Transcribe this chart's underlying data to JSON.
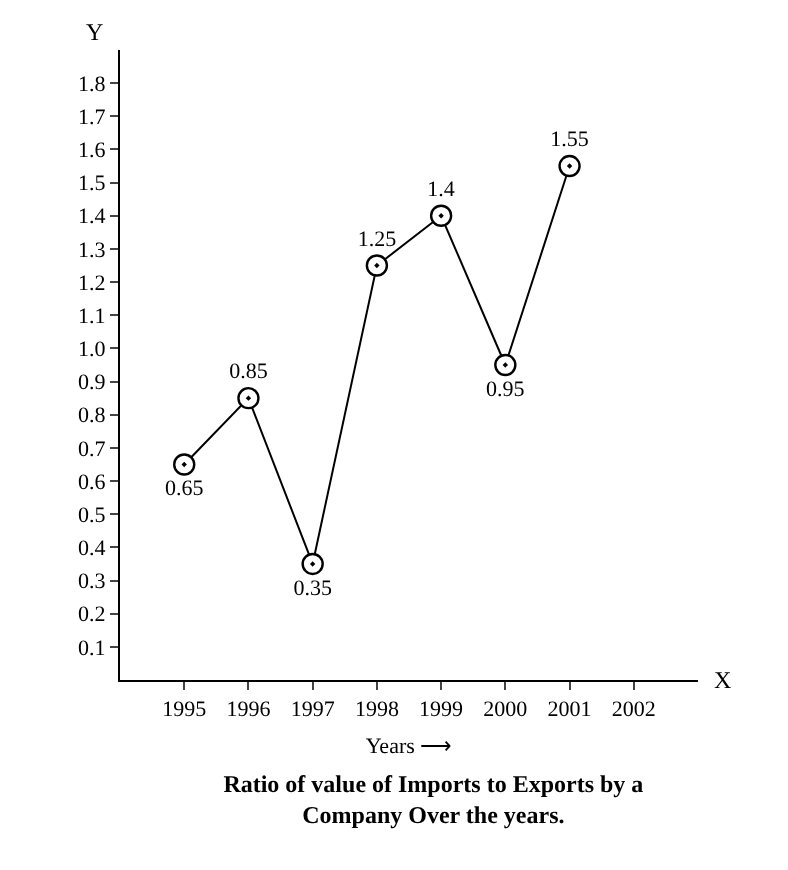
{
  "chart_data": {
    "type": "line",
    "title": "Ratio of value of Imports to Exports by a Company Over the years.",
    "xlabel": "Years ⟶",
    "ylabel": "Y",
    "annotations": [
      "X"
    ],
    "categories": [
      "1995",
      "1996",
      "1997",
      "1998",
      "1999",
      "2000",
      "2001",
      "2002"
    ],
    "series": [
      {
        "color": "#000000",
        "values": [
          0.65,
          0.85,
          0.35,
          1.25,
          1.4,
          0.95,
          1.55,
          null
        ]
      }
    ],
    "ylim": [
      0,
      1.9
    ],
    "yticks": [
      0.1,
      0.2,
      0.3,
      0.4,
      0.5,
      0.6,
      0.7,
      0.8,
      0.9,
      {
        "value": 1.0,
        "label": "1.0"
      },
      1.1,
      1.2,
      1.3,
      1.4,
      1.5,
      1.6,
      1.7,
      1.8
    ],
    "data_labels": true,
    "marker": "circle",
    "line_style": "solid",
    "legend": false
  }
}
